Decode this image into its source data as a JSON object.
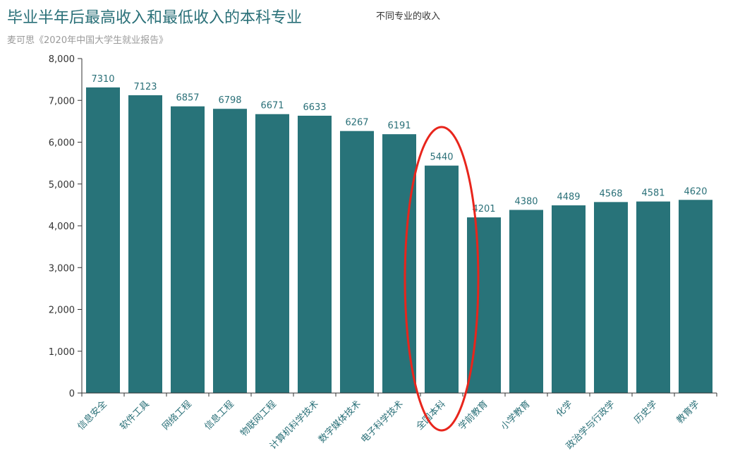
{
  "colors": {
    "bar": "#287379",
    "title": "#2a7078",
    "highlight": "#e8251c",
    "axis": "#333333"
  },
  "chart_data": {
    "type": "bar",
    "title": "毕业半年后最高收入和最低收入的本科专业",
    "subtitle": "麦可思《2020年中国大学生就业报告》",
    "legend": "不同专业的收入",
    "categories": [
      "信息安全",
      "软件工具",
      "网络工程",
      "信息工程",
      "物联网工程",
      "计算机科学技术",
      "数字媒体技术",
      "电子科学技术",
      "全国本科",
      "学前教育",
      "小学教育",
      "化学",
      "政治学与行政学",
      "历史学",
      "教育学"
    ],
    "series": [
      {
        "name": "不同专业的收入",
        "values": [
          7310,
          7123,
          6857,
          6798,
          6671,
          6633,
          6267,
          6191,
          5440,
          4201,
          4380,
          4489,
          4568,
          4581,
          4620
        ]
      }
    ],
    "ylim": [
      0,
      8000
    ],
    "yticks": [
      0,
      1000,
      2000,
      3000,
      4000,
      5000,
      6000,
      7000,
      8000
    ],
    "ytick_labels": [
      "0",
      "1,000",
      "2,000",
      "3,000",
      "4,000",
      "5,000",
      "6,000",
      "7,000",
      "8,000"
    ],
    "xlabel": "",
    "ylabel": "",
    "highlighted_category": "全国本科",
    "grid": false,
    "legend_position": "top"
  }
}
